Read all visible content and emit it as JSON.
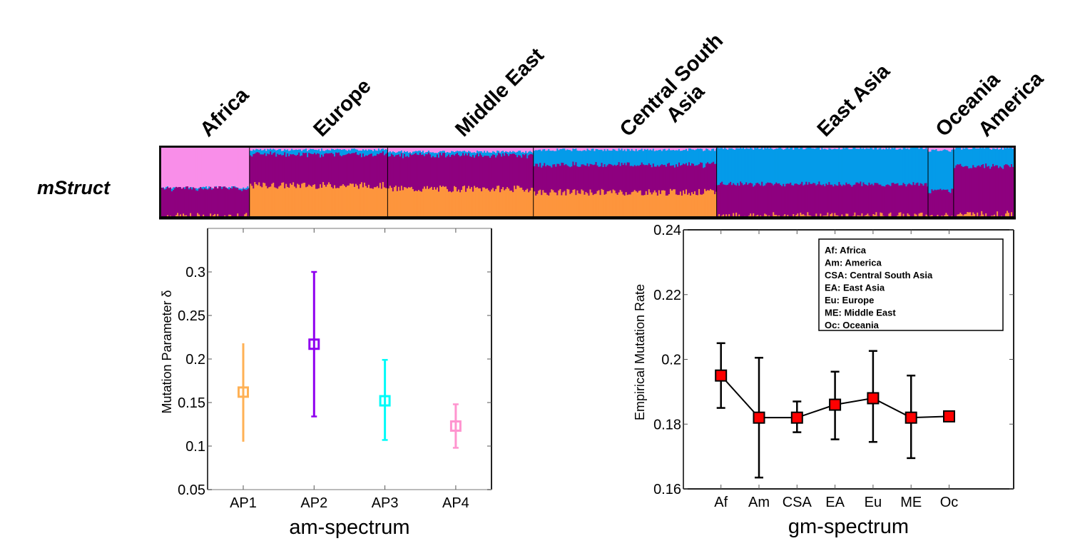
{
  "structure_plot": {
    "row_label": "mStruct",
    "colors": {
      "pink": "#f98ee9",
      "purple": "#8e007f",
      "blue": "#049be9",
      "orange": "#fd953d"
    },
    "regions": [
      {
        "label": [
          "Africa"
        ],
        "share": 0.104,
        "pink": 0.58,
        "blue": 0.01,
        "orange": 0.0,
        "purple": 0.41,
        "blue_top": true
      },
      {
        "label": [
          "Europe"
        ],
        "share": 0.162,
        "pink": 0.03,
        "blue": 0.07,
        "orange": 0.45,
        "purple": 0.45
      },
      {
        "label": [
          "Middle East"
        ],
        "share": 0.171,
        "pink": 0.06,
        "blue": 0.05,
        "orange": 0.4,
        "purple": 0.49
      },
      {
        "label": [
          "Central South",
          "Asia"
        ],
        "share": 0.215,
        "pink": 0.03,
        "blue": 0.22,
        "orange": 0.35,
        "purple": 0.4
      },
      {
        "label": [
          "East Asia"
        ],
        "share": 0.248,
        "pink": 0.01,
        "blue": 0.52,
        "orange": 0.01,
        "purple": 0.46
      },
      {
        "label": [
          "Oceania"
        ],
        "share": 0.03,
        "pink": 0.04,
        "blue": 0.58,
        "orange": 0.0,
        "purple": 0.38
      },
      {
        "label": [
          "America"
        ],
        "share": 0.07,
        "pink": 0.01,
        "blue": 0.26,
        "orange": 0.03,
        "purple": 0.7
      }
    ]
  },
  "chart_data": [
    {
      "type": "scatter",
      "subtype": "errorbar",
      "title": "",
      "xlabel": "am-spectrum",
      "ylabel": "Mutation Parameter δ",
      "categories": [
        "AP1",
        "AP2",
        "AP3",
        "AP4"
      ],
      "values": [
        0.162,
        0.217,
        0.152,
        0.123
      ],
      "error_low": [
        0.105,
        0.134,
        0.107,
        0.098
      ],
      "error_high": [
        0.218,
        0.3,
        0.199,
        0.148
      ],
      "caps": [
        false,
        true,
        true,
        true
      ],
      "colors": [
        "#ffb155",
        "#8f00ef",
        "#00fbf8",
        "#ff94cf"
      ],
      "ylim": [
        0.05,
        0.35
      ],
      "yticks": [
        "0.05",
        "0.1",
        "0.15",
        "0.2",
        "0.25",
        "0.3"
      ],
      "ytick_values": [
        0.05,
        0.1,
        0.15,
        0.2,
        0.25,
        0.3
      ],
      "grid": false
    },
    {
      "type": "line",
      "subtype": "errorbar",
      "title": "",
      "xlabel": "gm-spectrum",
      "ylabel": "Empirical Mutation Rate",
      "categories": [
        "Af",
        "Am",
        "CSA",
        "EA",
        "Eu",
        "ME",
        "Oc"
      ],
      "values": [
        0.195,
        0.182,
        0.182,
        0.186,
        0.188,
        0.182,
        0.1824
      ],
      "error_low": [
        0.185,
        0.1635,
        0.1775,
        0.1753,
        0.1745,
        0.1695,
        0.1812
      ],
      "error_high": [
        0.205,
        0.2005,
        0.187,
        0.1962,
        0.2026,
        0.195,
        0.1833
      ],
      "marker_color": "#ff0000",
      "line_color": "#000000",
      "ylim": [
        0.16,
        0.24
      ],
      "yticks": [
        "0.16",
        "0.18",
        "0.2",
        "0.22",
        "0.24"
      ],
      "ytick_values": [
        0.16,
        0.18,
        0.2,
        0.22,
        0.24
      ],
      "legend": {
        "placement": "top-right",
        "entries": [
          "Af: Africa",
          "Am: America",
          "CSA: Central South Asia",
          "EA: East Asia",
          "Eu: Europe",
          "ME: Middle East",
          "Oc: Oceania"
        ]
      },
      "grid": false
    }
  ]
}
